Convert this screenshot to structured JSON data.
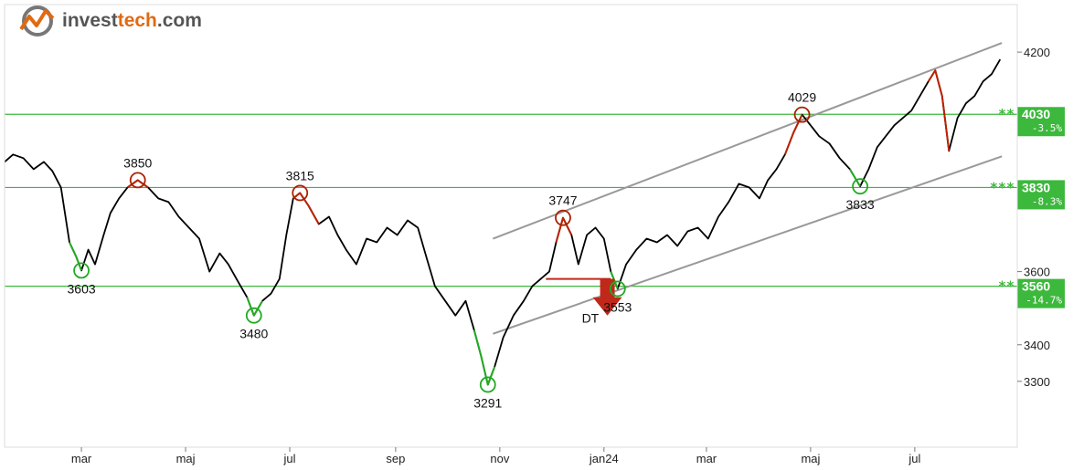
{
  "brand": {
    "part1": "invest",
    "part2": "tech",
    "part3": ".com",
    "color1": "#555555",
    "color2": "#e06a12",
    "icon": "chart-logo-icon"
  },
  "chart_data": {
    "type": "line",
    "xlim": [
      "2023-01-15",
      "2024-08-30"
    ],
    "ylim": [
      3120,
      4330
    ],
    "y_ticks": [
      3300,
      3400,
      3600,
      4200
    ],
    "x_ticks": [
      {
        "label": "mar",
        "date": "2023-03-01"
      },
      {
        "label": "maj",
        "date": "2023-05-01"
      },
      {
        "label": "jul",
        "date": "2023-07-01"
      },
      {
        "label": "sep",
        "date": "2023-09-01"
      },
      {
        "label": "nov",
        "date": "2023-11-01"
      },
      {
        "label": "jan24",
        "date": "2024-01-01"
      },
      {
        "label": "mar",
        "date": "2024-03-01"
      },
      {
        "label": "maj",
        "date": "2024-05-01"
      },
      {
        "label": "jul",
        "date": "2024-07-01"
      }
    ],
    "series": [
      {
        "points": [
          [
            "2023-01-15",
            3900
          ],
          [
            "2023-01-20",
            3920
          ],
          [
            "2023-01-26",
            3910
          ],
          [
            "2023-02-01",
            3880
          ],
          [
            "2023-02-07",
            3900
          ],
          [
            "2023-02-12",
            3875
          ],
          [
            "2023-02-17",
            3830
          ],
          [
            "2023-02-22",
            3680
          ],
          [
            "2023-02-26",
            3640
          ],
          [
            "2023-03-01",
            3603
          ],
          [
            "2023-03-05",
            3660
          ],
          [
            "2023-03-09",
            3620
          ],
          [
            "2023-03-14",
            3700
          ],
          [
            "2023-03-18",
            3760
          ],
          [
            "2023-03-23",
            3800
          ],
          [
            "2023-03-28",
            3830
          ],
          [
            "2023-04-03",
            3850
          ],
          [
            "2023-04-09",
            3830
          ],
          [
            "2023-04-15",
            3800
          ],
          [
            "2023-04-21",
            3790
          ],
          [
            "2023-04-27",
            3750
          ],
          [
            "2023-05-03",
            3720
          ],
          [
            "2023-05-09",
            3690
          ],
          [
            "2023-05-15",
            3600
          ],
          [
            "2023-05-21",
            3650
          ],
          [
            "2023-05-26",
            3620
          ],
          [
            "2023-06-01",
            3570
          ],
          [
            "2023-06-06",
            3530
          ],
          [
            "2023-06-10",
            3480
          ],
          [
            "2023-06-15",
            3520
          ],
          [
            "2023-06-20",
            3540
          ],
          [
            "2023-06-25",
            3580
          ],
          [
            "2023-06-29",
            3700
          ],
          [
            "2023-07-03",
            3800
          ],
          [
            "2023-07-07",
            3815
          ],
          [
            "2023-07-12",
            3780
          ],
          [
            "2023-07-18",
            3730
          ],
          [
            "2023-07-24",
            3750
          ],
          [
            "2023-07-29",
            3700
          ],
          [
            "2023-08-03",
            3660
          ],
          [
            "2023-08-09",
            3620
          ],
          [
            "2023-08-15",
            3690
          ],
          [
            "2023-08-21",
            3680
          ],
          [
            "2023-08-27",
            3720
          ],
          [
            "2023-09-02",
            3700
          ],
          [
            "2023-09-08",
            3740
          ],
          [
            "2023-09-14",
            3720
          ],
          [
            "2023-09-19",
            3640
          ],
          [
            "2023-09-24",
            3560
          ],
          [
            "2023-09-30",
            3520
          ],
          [
            "2023-10-06",
            3480
          ],
          [
            "2023-10-12",
            3520
          ],
          [
            "2023-10-17",
            3440
          ],
          [
            "2023-10-21",
            3370
          ],
          [
            "2023-10-25",
            3291
          ],
          [
            "2023-10-29",
            3340
          ],
          [
            "2023-11-03",
            3420
          ],
          [
            "2023-11-09",
            3480
          ],
          [
            "2023-11-15",
            3520
          ],
          [
            "2023-11-20",
            3560
          ],
          [
            "2023-11-25",
            3580
          ],
          [
            "2023-11-30",
            3600
          ],
          [
            "2023-12-04",
            3680
          ],
          [
            "2023-12-08",
            3747
          ],
          [
            "2023-12-13",
            3700
          ],
          [
            "2023-12-17",
            3620
          ],
          [
            "2023-12-22",
            3700
          ],
          [
            "2023-12-27",
            3720
          ],
          [
            "2024-01-01",
            3690
          ],
          [
            "2024-01-05",
            3600
          ],
          [
            "2024-01-09",
            3553
          ],
          [
            "2024-01-14",
            3620
          ],
          [
            "2024-01-20",
            3660
          ],
          [
            "2024-01-26",
            3690
          ],
          [
            "2024-02-01",
            3680
          ],
          [
            "2024-02-07",
            3700
          ],
          [
            "2024-02-13",
            3670
          ],
          [
            "2024-02-19",
            3710
          ],
          [
            "2024-02-25",
            3720
          ],
          [
            "2024-03-02",
            3690
          ],
          [
            "2024-03-08",
            3750
          ],
          [
            "2024-03-14",
            3790
          ],
          [
            "2024-03-20",
            3840
          ],
          [
            "2024-03-26",
            3830
          ],
          [
            "2024-04-01",
            3800
          ],
          [
            "2024-04-06",
            3850
          ],
          [
            "2024-04-11",
            3880
          ],
          [
            "2024-04-16",
            3920
          ],
          [
            "2024-04-21",
            3980
          ],
          [
            "2024-04-26",
            4029
          ],
          [
            "2024-05-01",
            4000
          ],
          [
            "2024-05-06",
            3970
          ],
          [
            "2024-05-12",
            3950
          ],
          [
            "2024-05-18",
            3910
          ],
          [
            "2024-05-24",
            3880
          ],
          [
            "2024-05-30",
            3833
          ],
          [
            "2024-06-04",
            3880
          ],
          [
            "2024-06-09",
            3940
          ],
          [
            "2024-06-14",
            3970
          ],
          [
            "2024-06-19",
            4000
          ],
          [
            "2024-06-24",
            4020
          ],
          [
            "2024-06-29",
            4040
          ],
          [
            "2024-07-04",
            4080
          ],
          [
            "2024-07-09",
            4120
          ],
          [
            "2024-07-13",
            4150
          ],
          [
            "2024-07-17",
            4080
          ],
          [
            "2024-07-21",
            3930
          ],
          [
            "2024-07-26",
            4020
          ],
          [
            "2024-07-31",
            4060
          ],
          [
            "2024-08-05",
            4080
          ],
          [
            "2024-08-10",
            4120
          ],
          [
            "2024-08-15",
            4140
          ],
          [
            "2024-08-20",
            4180
          ]
        ]
      }
    ],
    "segments": [
      {
        "color": "#22aa22",
        "from": "2023-02-20",
        "to": "2023-03-03"
      },
      {
        "color": "#bb2200",
        "from": "2023-03-28",
        "to": "2023-04-09"
      },
      {
        "color": "#22aa22",
        "from": "2023-06-05",
        "to": "2023-06-17"
      },
      {
        "color": "#bb2200",
        "from": "2023-07-01",
        "to": "2023-07-22"
      },
      {
        "color": "#22aa22",
        "from": "2023-10-17",
        "to": "2023-10-29"
      },
      {
        "color": "#bb2200",
        "from": "2023-12-01",
        "to": "2023-12-13"
      },
      {
        "color": "#22aa22",
        "from": "2024-01-05",
        "to": "2024-01-12"
      },
      {
        "color": "#bb2200",
        "from": "2024-04-16",
        "to": "2024-04-30"
      },
      {
        "color": "#22aa22",
        "from": "2024-05-24",
        "to": "2024-06-02"
      },
      {
        "color": "#bb2200",
        "from": "2024-07-09",
        "to": "2024-07-21"
      }
    ],
    "channel": [
      {
        "from": [
          "2023-10-28",
          3690
        ],
        "to": [
          "2024-08-21",
          4225
        ]
      },
      {
        "from": [
          "2023-10-28",
          3430
        ],
        "to": [
          "2024-08-21",
          3915
        ]
      }
    ],
    "markers": [
      {
        "date": "2023-03-01",
        "value": 3603,
        "label": "3603",
        "color": "#22aa22",
        "label_pos": "below"
      },
      {
        "date": "2023-04-03",
        "value": 3850,
        "label": "3850",
        "color": "#aa2200",
        "label_pos": "above"
      },
      {
        "date": "2023-06-10",
        "value": 3480,
        "label": "3480",
        "color": "#22aa22",
        "label_pos": "below"
      },
      {
        "date": "2023-07-07",
        "value": 3815,
        "label": "3815",
        "color": "#aa2200",
        "label_pos": "above"
      },
      {
        "date": "2023-10-25",
        "value": 3291,
        "label": "3291",
        "color": "#22aa22",
        "label_pos": "below"
      },
      {
        "date": "2023-12-08",
        "value": 3747,
        "label": "3747",
        "color": "#aa2200",
        "label_pos": "above"
      },
      {
        "date": "2024-01-09",
        "value": 3553,
        "label": "3553",
        "color": "#22aa22",
        "label_pos": "below"
      },
      {
        "date": "2024-04-26",
        "value": 4029,
        "label": "4029",
        "color": "#aa2200",
        "label_pos": "above"
      },
      {
        "date": "2024-05-30",
        "value": 3833,
        "label": "3833",
        "color": "#22aa22",
        "label_pos": "below"
      }
    ],
    "breakout": {
      "label": "DT",
      "level": 3580,
      "from": "2023-11-28",
      "to": "2024-01-05",
      "arrow_date": "2024-01-03",
      "arrow_top": 3580,
      "arrow_bottom": 3480,
      "color": "#c0281a"
    },
    "levels": [
      {
        "value": 4030,
        "label": "4030",
        "pct": "-3.5%",
        "stars": "**"
      },
      {
        "value": 3830,
        "label": "3830",
        "pct": "-8.3%",
        "stars": "***"
      },
      {
        "value": 3560,
        "label": "3560",
        "pct": "-14.7%",
        "stars": "**"
      }
    ],
    "grid": false
  }
}
